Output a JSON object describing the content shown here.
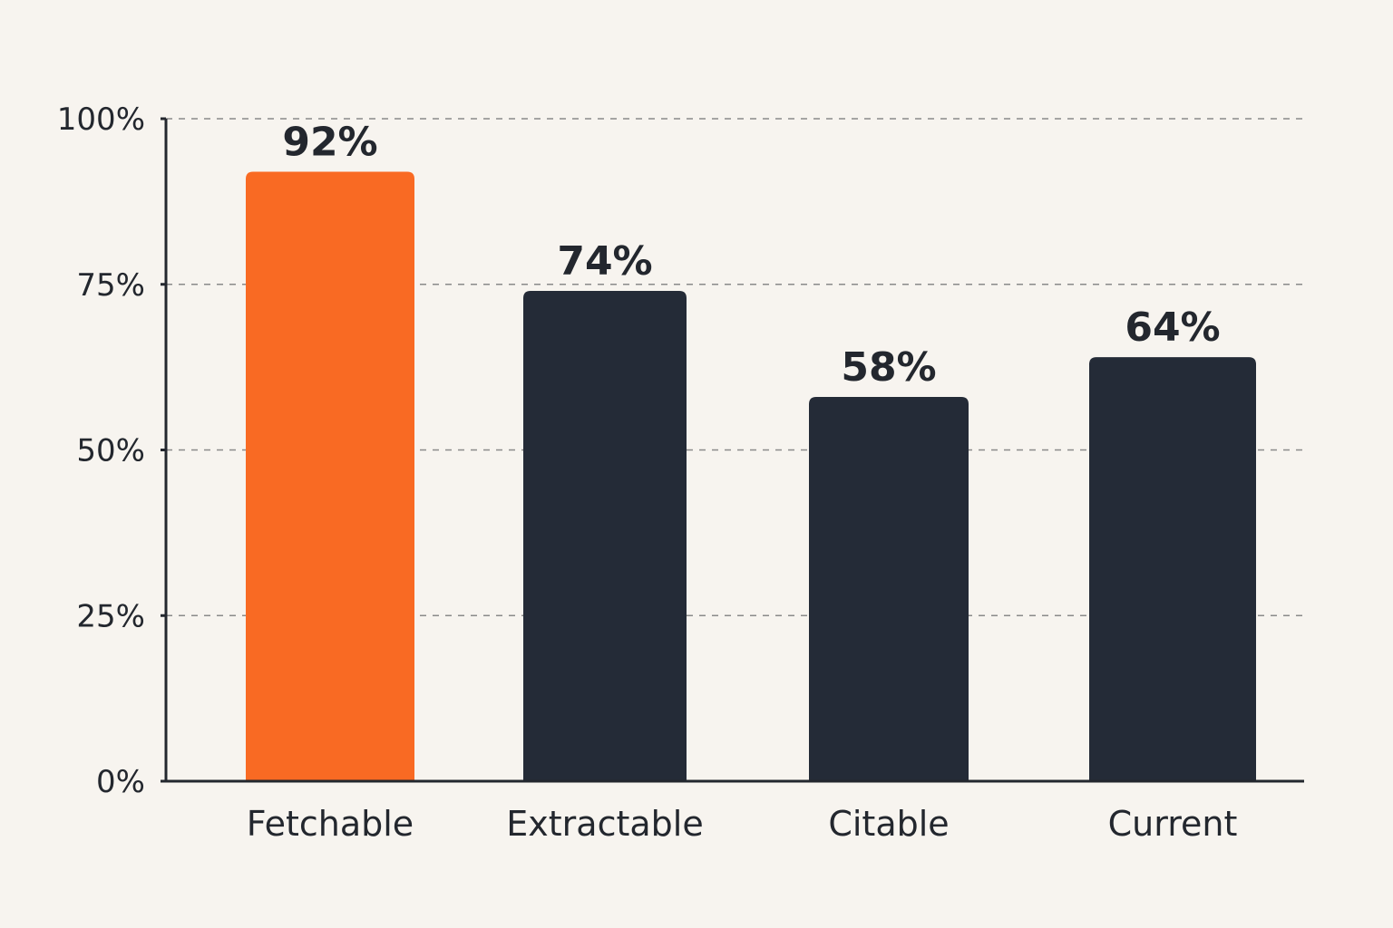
{
  "chart_data": {
    "type": "bar",
    "categories": [
      "Fetchable",
      "Extractable",
      "Citable",
      "Current"
    ],
    "values": [
      92,
      74,
      58,
      64
    ],
    "data_labels": [
      "92%",
      "74%",
      "58%",
      "64%"
    ],
    "title": "",
    "xlabel": "",
    "ylabel": "",
    "ylim": [
      0,
      100
    ],
    "y_ticks": [
      0,
      25,
      50,
      75,
      100
    ],
    "y_tick_labels": [
      "0%",
      "25%",
      "50%",
      "75%",
      "100%"
    ],
    "grid": "dashed horizontal",
    "legend": "none",
    "colors": {
      "highlight": "#f96a23",
      "bar": "#242b37",
      "axis": "#23272e",
      "grid": "#8a8a8a",
      "background": "#f7f4ef"
    },
    "highlight_index": 0
  }
}
